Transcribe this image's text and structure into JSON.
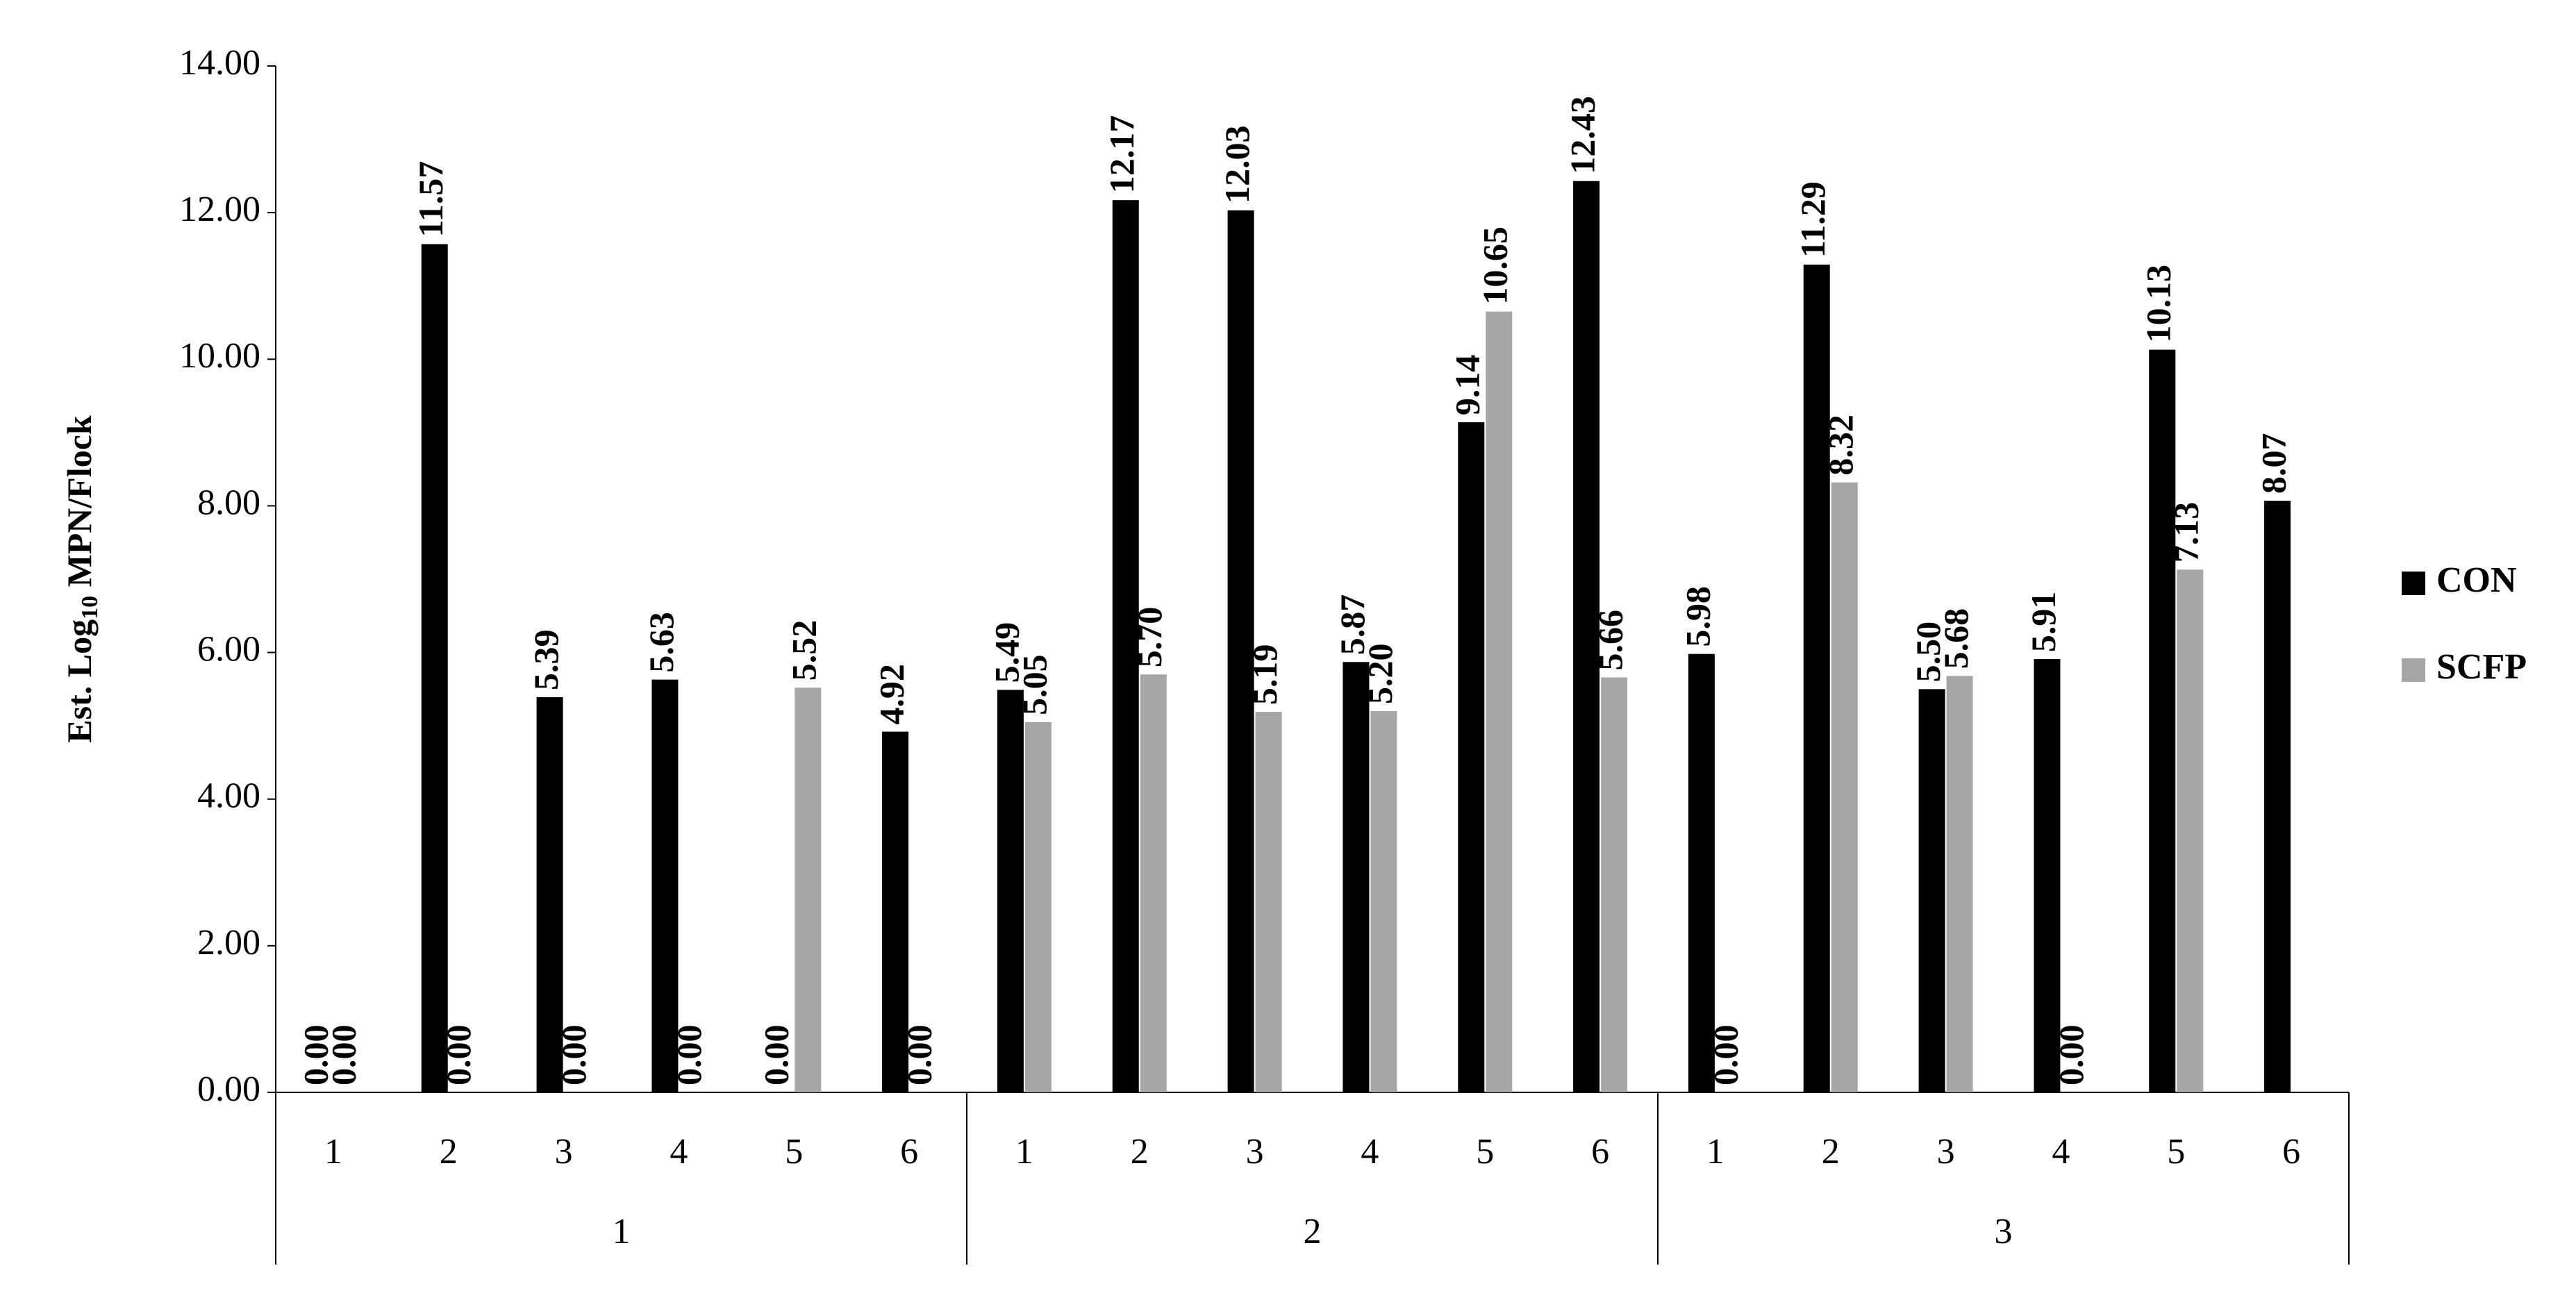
{
  "chart_data": {
    "type": "bar",
    "ylabel_parts": [
      "Est. Log",
      "10",
      " MPN/Flock"
    ],
    "groups": [
      "1",
      "2",
      "3"
    ],
    "categories": [
      "1",
      "2",
      "3",
      "4",
      "5",
      "6",
      "1",
      "2",
      "3",
      "4",
      "5",
      "6",
      "1",
      "2",
      "3",
      "4",
      "5",
      "6"
    ],
    "series": [
      {
        "name": "CON",
        "color": "#000000",
        "values": [
          0.0,
          11.57,
          5.39,
          5.63,
          0.0,
          4.92,
          5.49,
          12.17,
          12.03,
          5.87,
          9.14,
          12.43,
          5.98,
          11.29,
          5.5,
          5.91,
          10.13,
          8.07
        ],
        "value_labels": [
          "0.00",
          "11.57",
          "5.39",
          "5.63",
          "0.00",
          "4.92",
          "5.49",
          "12.17",
          "12.03",
          "5.87",
          "9.14",
          "12.43",
          "5.98",
          "11.29",
          "5.50",
          "5.91",
          "10.13",
          "8.07"
        ]
      },
      {
        "name": "SCFP",
        "color": "#a6a6a6",
        "values": [
          0.0,
          0.0,
          0.0,
          0.0,
          5.52,
          0.0,
          5.05,
          5.7,
          5.19,
          5.2,
          10.65,
          5.66,
          0.0,
          8.32,
          5.68,
          0.0,
          7.13,
          null
        ],
        "value_labels": [
          "0.00",
          "0.00",
          "0.00",
          "0.00",
          "5.52",
          "0.00",
          "5.05",
          "5.70",
          "5.19",
          "5.20",
          "10.65",
          "5.66",
          "0.00",
          "8.32",
          "5.68",
          "0.00",
          "7.13",
          null
        ]
      }
    ],
    "ylim": [
      0,
      14
    ],
    "yticks": [
      {
        "value": 0,
        "label": "0.00"
      },
      {
        "value": 2,
        "label": "2.00"
      },
      {
        "value": 4,
        "label": "4.00"
      },
      {
        "value": 6,
        "label": "6.00"
      },
      {
        "value": 8,
        "label": "8.00"
      },
      {
        "value": 10,
        "label": "10.00"
      },
      {
        "value": 12,
        "label": "12.00"
      },
      {
        "value": 14,
        "label": "14.00"
      }
    ],
    "grid": false,
    "legend": "right"
  }
}
